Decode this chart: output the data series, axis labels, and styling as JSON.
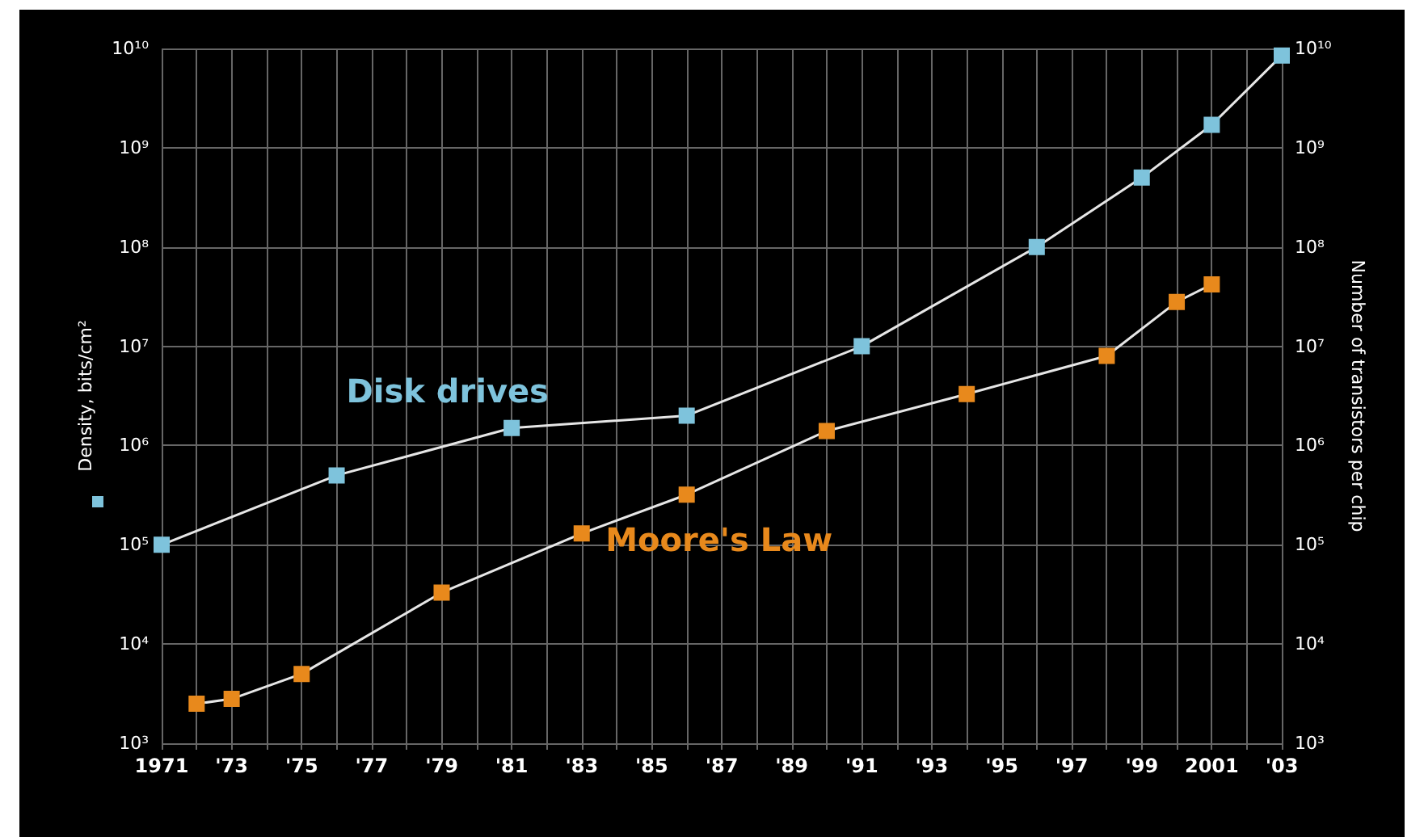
{
  "chart_data": {
    "type": "line",
    "ylabel": "Density, bits/cm²",
    "y2label": "Number of transistors per chip",
    "series": [
      {
        "name": "Disk drives",
        "color": "#7ec3dc",
        "x": [
          1971,
          1976,
          1981,
          1986,
          1991,
          1996,
          1999,
          2001,
          2003
        ],
        "values": [
          100000,
          500000,
          1500000,
          2000000,
          10000000,
          100000000,
          500000000,
          1700000000,
          8500000000
        ]
      },
      {
        "name": "Moore's Law",
        "color": "#e8891c",
        "x": [
          1972,
          1973,
          1975,
          1979,
          1983,
          1986,
          1990,
          1994,
          1998,
          2000,
          2001
        ],
        "values": [
          2500,
          2800,
          5000,
          33000,
          130000,
          320000,
          1400000,
          3300000,
          8000000,
          28000000,
          42000000
        ]
      }
    ],
    "xlim": [
      1971,
      2003
    ],
    "xticks": [
      {
        "value": 1971,
        "label": "1971"
      },
      {
        "value": 1972,
        "label": null
      },
      {
        "value": 1973,
        "label": "'73"
      },
      {
        "value": 1974,
        "label": null
      },
      {
        "value": 1975,
        "label": "'75"
      },
      {
        "value": 1976,
        "label": null
      },
      {
        "value": 1977,
        "label": "'77"
      },
      {
        "value": 1978,
        "label": null
      },
      {
        "value": 1979,
        "label": "'79"
      },
      {
        "value": 1980,
        "label": null
      },
      {
        "value": 1981,
        "label": "'81"
      },
      {
        "value": 1982,
        "label": null
      },
      {
        "value": 1983,
        "label": "'83"
      },
      {
        "value": 1984,
        "label": null
      },
      {
        "value": 1985,
        "label": "'85"
      },
      {
        "value": 1986,
        "label": null
      },
      {
        "value": 1987,
        "label": "'87"
      },
      {
        "value": 1988,
        "label": null
      },
      {
        "value": 1989,
        "label": "'89"
      },
      {
        "value": 1990,
        "label": null
      },
      {
        "value": 1991,
        "label": "'91"
      },
      {
        "value": 1992,
        "label": null
      },
      {
        "value": 1993,
        "label": "'93"
      },
      {
        "value": 1994,
        "label": null
      },
      {
        "value": 1995,
        "label": "'95"
      },
      {
        "value": 1996,
        "label": null
      },
      {
        "value": 1997,
        "label": "'97"
      },
      {
        "value": 1998,
        "label": null
      },
      {
        "value": 1999,
        "label": "'99"
      },
      {
        "value": 2000,
        "label": null
      },
      {
        "value": 2001,
        "label": "2001"
      },
      {
        "value": 2002,
        "label": null
      },
      {
        "value": 2003,
        "label": "'03"
      }
    ],
    "ylim": [
      1000,
      10000000000
    ],
    "yticks": [
      {
        "value": 1000,
        "label": "10³"
      },
      {
        "value": 10000,
        "label": "10⁴"
      },
      {
        "value": 100000,
        "label": "10⁵"
      },
      {
        "value": 1000000,
        "label": "10⁶"
      },
      {
        "value": 10000000,
        "label": "10⁷"
      },
      {
        "value": 100000000,
        "label": "10⁸"
      },
      {
        "value": 1000000000,
        "label": "10⁹"
      },
      {
        "value": 10000000000,
        "label": "10¹⁰"
      }
    ],
    "log": "y",
    "grid": true,
    "legend": false,
    "marker": "square",
    "line_style": "solid"
  }
}
